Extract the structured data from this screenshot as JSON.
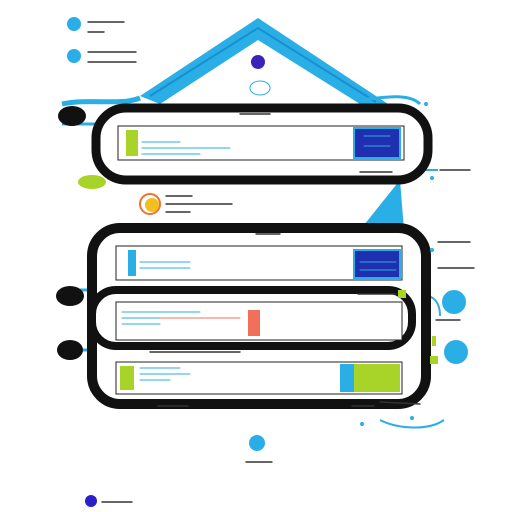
{
  "colors": {
    "cyan": "#2aaee6",
    "blue": "#1e3fbf",
    "lime": "#a8d42a",
    "orange": "#f0a020",
    "coral": "#f0705a",
    "navy": "#1a1f8f",
    "black": "#111111"
  },
  "icons": {
    "top_left_1": "cyan-dot-icon",
    "top_left_2": "cyan-dot-icon",
    "roof_peak": "purple-dot-icon",
    "bottom_dot": "cyan-dot-icon",
    "footer_dot": "blue-dot-icon"
  }
}
